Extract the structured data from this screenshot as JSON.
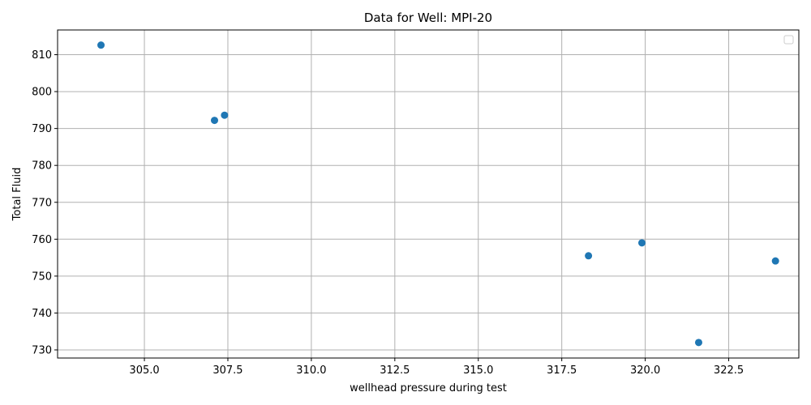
{
  "chart_data": {
    "type": "scatter",
    "title": "Data for Well: MPI-20",
    "xlabel": "wellhead pressure during test",
    "ylabel": "Total Fluid",
    "xlim": [
      302.4,
      324.6
    ],
    "ylim": [
      727.8,
      816.7
    ],
    "xticks": [
      305.0,
      307.5,
      310.0,
      312.5,
      315.0,
      317.5,
      320.0,
      322.5
    ],
    "xtick_labels": [
      "305.0",
      "307.5",
      "310.0",
      "312.5",
      "315.0",
      "317.5",
      "320.0",
      "322.5"
    ],
    "yticks": [
      730,
      740,
      750,
      760,
      770,
      780,
      790,
      800,
      810
    ],
    "ytick_labels": [
      "730",
      "740",
      "750",
      "760",
      "770",
      "780",
      "790",
      "800",
      "810"
    ],
    "grid": true,
    "legend": {
      "placement": "top-right",
      "entries": []
    },
    "color": "#1f77b4",
    "points": [
      {
        "x": 303.7,
        "y": 812.6
      },
      {
        "x": 307.1,
        "y": 792.2
      },
      {
        "x": 307.4,
        "y": 793.6
      },
      {
        "x": 318.3,
        "y": 755.5
      },
      {
        "x": 319.9,
        "y": 759.0
      },
      {
        "x": 321.6,
        "y": 732.0
      },
      {
        "x": 323.9,
        "y": 754.1
      }
    ]
  }
}
